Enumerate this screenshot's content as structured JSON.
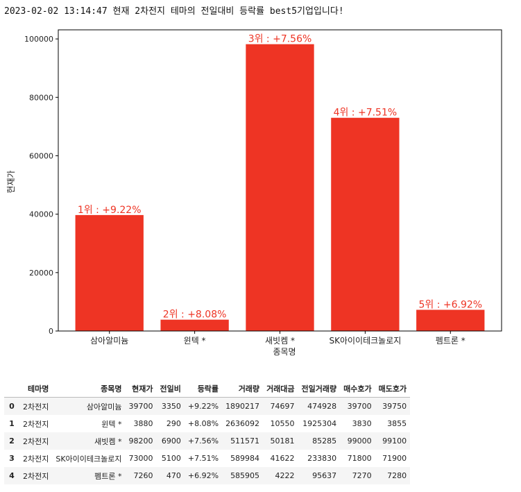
{
  "title": "2023-02-02 13:14:47 현재 2차전지 테마의 전일대비 등락률 best5기업입니다!",
  "colors": {
    "bar": "#ee3424",
    "label": "#ee3424"
  },
  "chart_data": {
    "type": "bar",
    "categories": [
      "삼아알미늄",
      "윈텍 *",
      "새빗켐 *",
      "SK아이이테크놀로지",
      "펨트론 *"
    ],
    "values": [
      39700,
      3880,
      98200,
      73000,
      7260
    ],
    "bar_labels": [
      "1위 : +9.22%",
      "2위 : +8.08%",
      "3위 : +7.56%",
      "4위 : +7.51%",
      "5위 : +6.92%"
    ],
    "xlabel": "종목명",
    "ylabel": "현재가",
    "ylim": [
      0,
      103110
    ],
    "yticks": [
      0,
      20000,
      40000,
      60000,
      80000,
      100000
    ],
    "grid": false
  },
  "table": {
    "columns": [
      "",
      "테마명",
      "종목명",
      "현재가",
      "전일비",
      "등락률",
      "거래량",
      "거래대금",
      "전일거래량",
      "매수호가",
      "매도호가"
    ],
    "rows": [
      [
        "0",
        "2차전지",
        "삼아알미늄",
        "39700",
        "3350",
        "+9.22%",
        "1890217",
        "74697",
        "474928",
        "39700",
        "39750"
      ],
      [
        "1",
        "2차전지",
        "윈텍 *",
        "3880",
        "290",
        "+8.08%",
        "2636092",
        "10550",
        "1925304",
        "3830",
        "3855"
      ],
      [
        "2",
        "2차전지",
        "새빗켐 *",
        "98200",
        "6900",
        "+7.56%",
        "511571",
        "50181",
        "85285",
        "99000",
        "99100"
      ],
      [
        "3",
        "2차전지",
        "SK아이이테크놀로지",
        "73000",
        "5100",
        "+7.51%",
        "589984",
        "41622",
        "233830",
        "71800",
        "71900"
      ],
      [
        "4",
        "2차전지",
        "펨트론 *",
        "7260",
        "470",
        "+6.92%",
        "585905",
        "4222",
        "95637",
        "7270",
        "7280"
      ]
    ]
  }
}
